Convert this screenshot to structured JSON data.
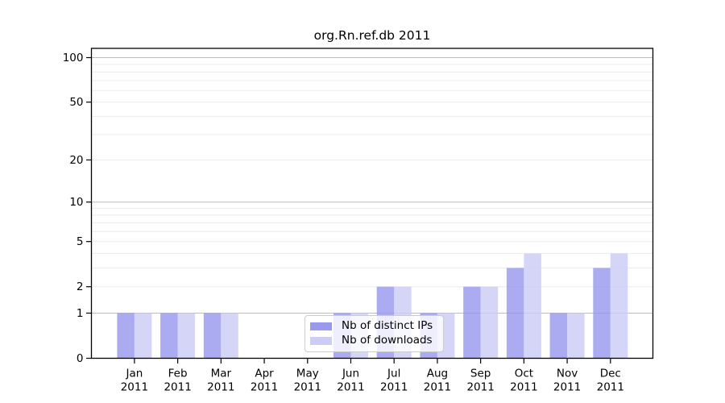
{
  "chart_data": {
    "type": "bar",
    "title": "org.Rn.ref.db 2011",
    "year_label": "2011",
    "months": [
      "Jan",
      "Feb",
      "Mar",
      "Apr",
      "May",
      "Jun",
      "Jul",
      "Aug",
      "Sep",
      "Oct",
      "Nov",
      "Dec"
    ],
    "series": [
      {
        "name": "Nb of distinct IPs",
        "color": "#9999ee",
        "values": [
          1,
          1,
          1,
          0,
          0,
          1,
          2,
          1,
          2,
          3,
          1,
          3
        ]
      },
      {
        "name": "Nb of downloads",
        "color": "#ccccf5",
        "values": [
          1,
          1,
          1,
          0,
          0,
          1,
          2,
          1,
          2,
          4,
          1,
          4
        ]
      }
    ],
    "y_ticks": [
      "0",
      "1",
      "2",
      "5",
      "10",
      "20",
      "50",
      "100"
    ],
    "y_tick_values": [
      0,
      1,
      2,
      5,
      10,
      20,
      50,
      100
    ],
    "y_scale": "log1p",
    "ylim": [
      0,
      115
    ],
    "y_major_gridlines": [
      1,
      10,
      100
    ],
    "y_minor_gridlines": [
      2,
      3,
      4,
      5,
      6,
      7,
      8,
      9,
      20,
      30,
      40,
      50,
      60,
      70,
      80,
      90
    ],
    "grid": true,
    "legend_position": "lower center",
    "xlabel": "",
    "ylabel": ""
  },
  "palette": {
    "axis": "#000000",
    "major_grid": "#bdbdbd",
    "minor_grid": "#ececec",
    "legend_border": "#cccccc",
    "background": "#ffffff"
  }
}
